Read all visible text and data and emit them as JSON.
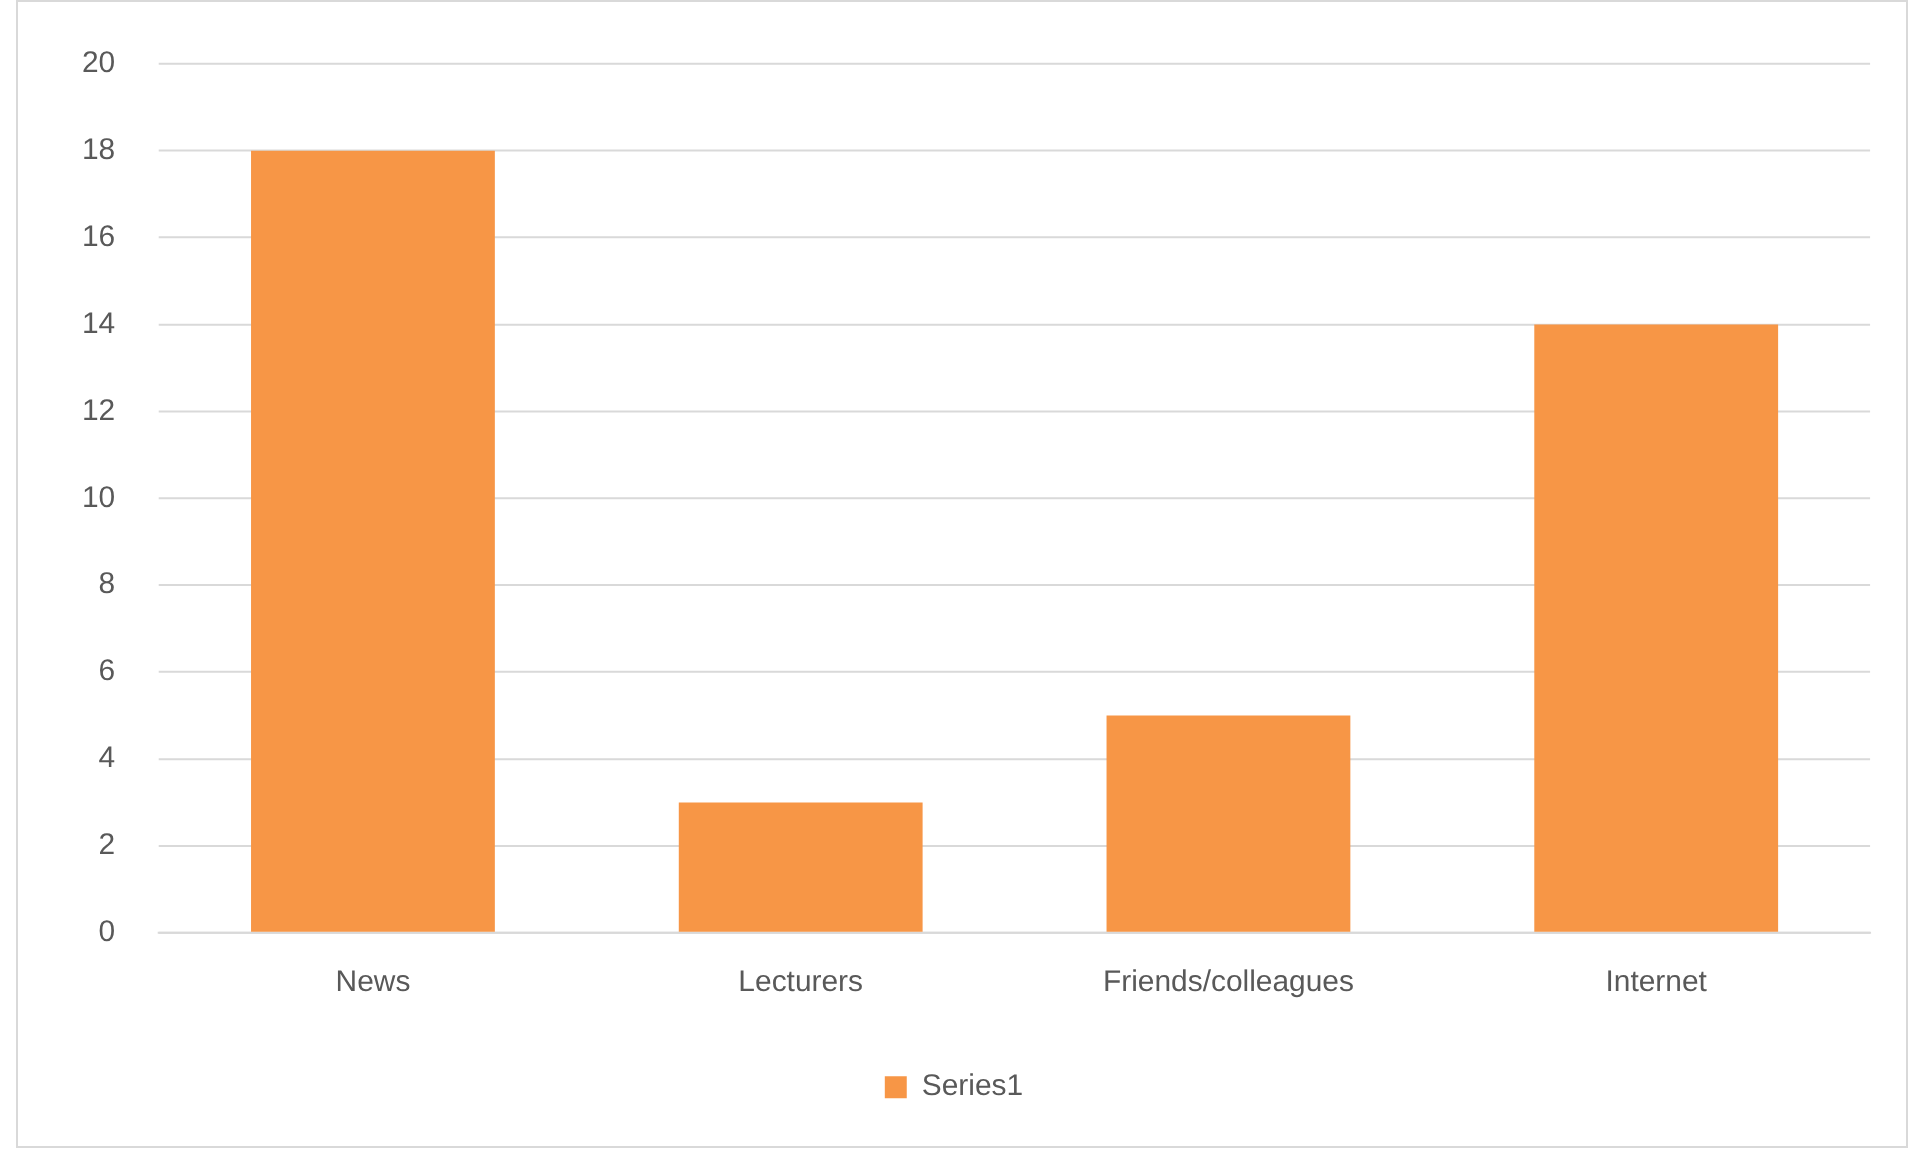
{
  "chart_data": {
    "type": "bar",
    "categories": [
      "News",
      "Lecturers",
      "Friends/colleagues",
      "Internet"
    ],
    "series": [
      {
        "name": "Series1",
        "color": "#f79646",
        "values": [
          18,
          3,
          5,
          14
        ]
      }
    ],
    "ylim": [
      0,
      20
    ],
    "yticks": [
      0,
      2,
      4,
      6,
      8,
      10,
      12,
      14,
      16,
      18,
      20
    ],
    "grid": "y",
    "legend": "bottom"
  }
}
